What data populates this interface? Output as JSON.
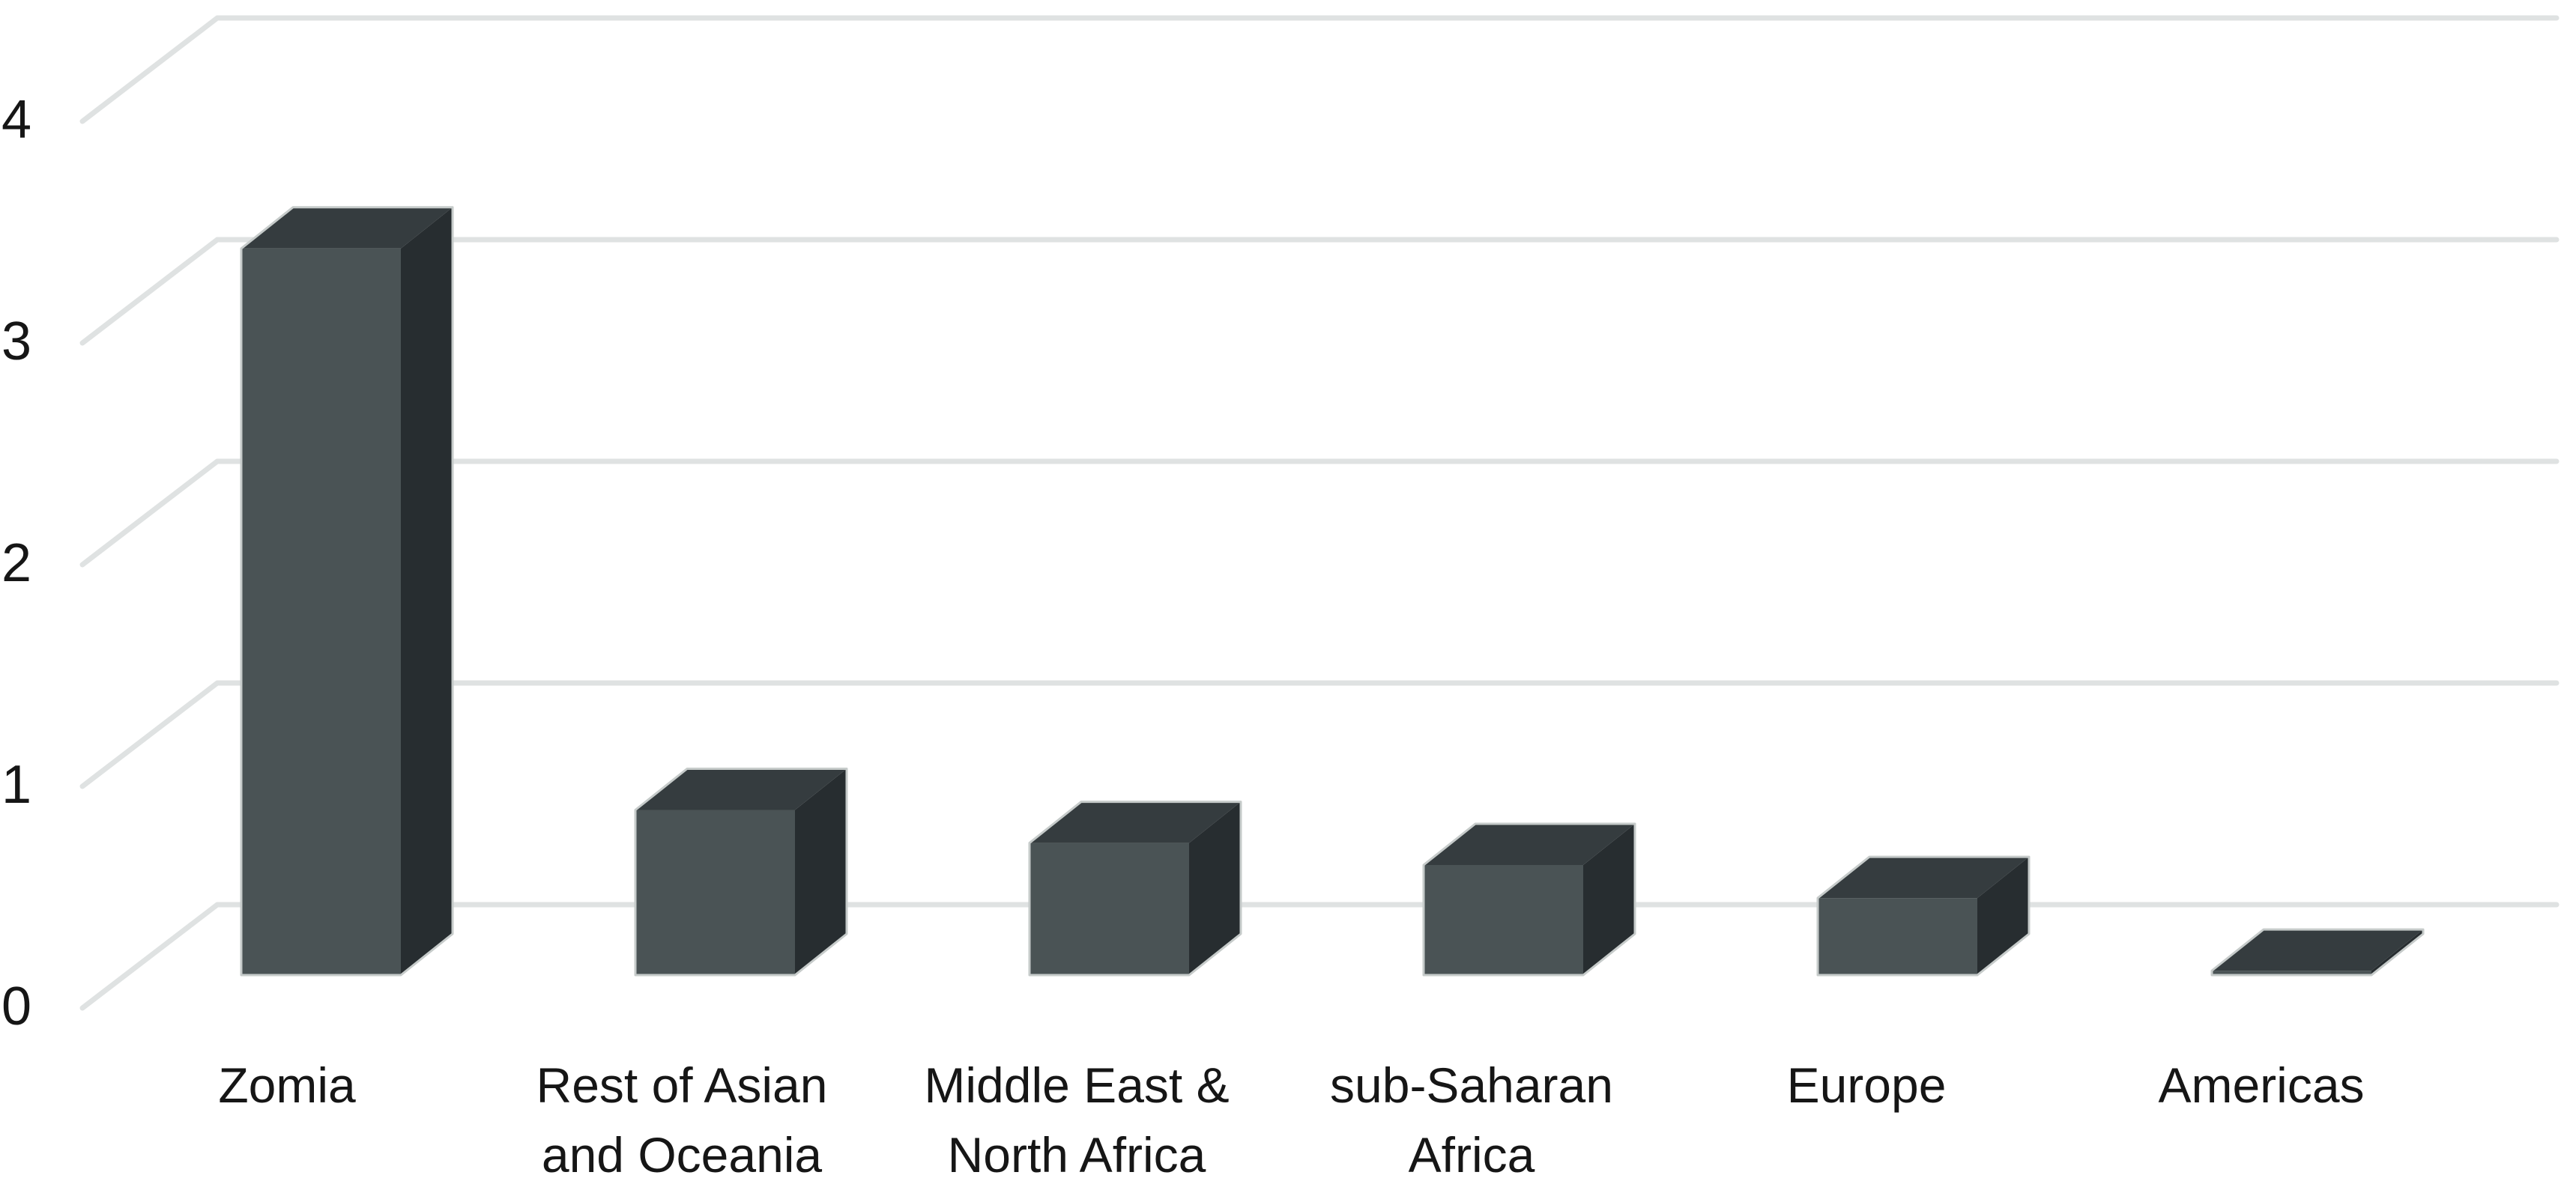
{
  "figure": {
    "background": "#ffffff",
    "title": ""
  },
  "chart_data": {
    "type": "bar",
    "style": "3d-column",
    "title": "",
    "xlabel": "",
    "ylabel": "",
    "categories": [
      "Zomia",
      "Rest of Asian and Oceania",
      "Middle East & North Africa",
      "sub-Saharan Africa",
      "Europe",
      "Americas"
    ],
    "category_label_lines": [
      [
        "Zomia"
      ],
      [
        "Rest of Asian",
        "and Oceania"
      ],
      [
        "Middle East &",
        "North Africa"
      ],
      [
        "sub-Saharan",
        "Africa"
      ],
      [
        "Europe"
      ],
      [
        "Americas"
      ]
    ],
    "values": [
      3.3,
      0.75,
      0.6,
      0.5,
      0.35,
      0.02
    ],
    "yticks": [
      0,
      1,
      2,
      3,
      4
    ],
    "ylim": [
      0,
      4
    ],
    "grid": true,
    "legend": false,
    "layout": {
      "view": "3d",
      "legend_position": "none"
    },
    "colors": {
      "bar_front": "#4a5355",
      "bar_side": "#272d30",
      "bar_top": "#353c3f",
      "bar_edge_highlight": "#c6cbca",
      "gridline": "#dfe2e2",
      "label_text": "#161616",
      "background": "#ffffff"
    }
  }
}
